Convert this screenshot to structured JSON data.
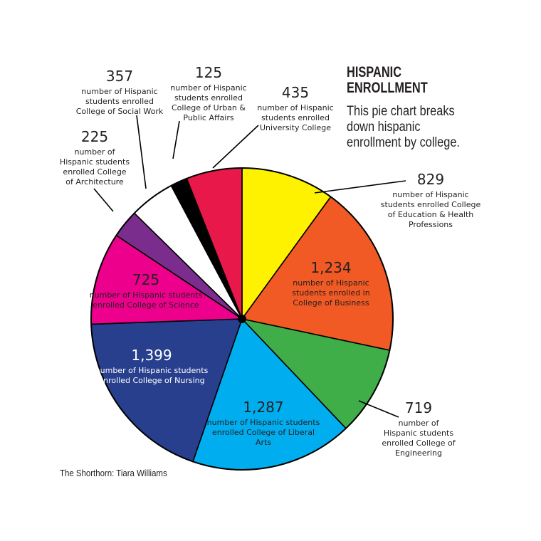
{
  "title": "HISPANIC ENROLLMENT",
  "title_lines": [
    "HISPANIC",
    "ENROLLMENT"
  ],
  "subtitle_lines": [
    "This pie chart breaks",
    "down hispanic",
    "enrollment by college."
  ],
  "credit": "The Shorthorn: Tiara Williams",
  "labels": {
    "social_work": {
      "value": "357",
      "lines": [
        "number of Hispanic",
        "students enrolled",
        "College of Social Work"
      ]
    },
    "urban": {
      "value": "125",
      "lines": [
        "number of Hispanic",
        "students enrolled",
        "College of Urban &",
        "Public Affairs"
      ]
    },
    "university": {
      "value": "435",
      "lines": [
        "number of Hispanic",
        "students enrolled",
        "University College"
      ]
    },
    "architecture": {
      "value": "225",
      "lines": [
        "number of",
        "Hispanic students",
        "enrolled College",
        "of Architecture"
      ]
    },
    "education": {
      "value": "829",
      "lines": [
        "number of Hispanic",
        "students enrolled College",
        "of Education & Health",
        "Professions"
      ]
    },
    "business": {
      "value": "1,234",
      "lines": [
        "number of Hispanic",
        "students enrolled in",
        "College of Business"
      ]
    },
    "science": {
      "value": "725",
      "lines": [
        "number of Hispanic students",
        "enrolled College of Science"
      ]
    },
    "nursing": {
      "value": "1,399",
      "lines": [
        "number of Hispanic students",
        "enrolled College of Nursing"
      ]
    },
    "liberal_arts": {
      "value": "1,287",
      "lines": [
        "number of Hispanic students",
        "enrolled College of Liberal",
        "Arts"
      ]
    },
    "engineering": {
      "value": "719",
      "lines": [
        "number of",
        "Hispanic students",
        "enrolled College of",
        "Engineering"
      ]
    }
  },
  "chart_data": {
    "type": "pie",
    "title": "HISPANIC ENROLLMENT",
    "subtitle": "This pie chart breaks down hispanic enrollment by college.",
    "categories": [
      "University College",
      "College of Education & Health Professions",
      "College of Engineering",
      "College of Liberal Arts",
      "College of Nursing",
      "College of Science",
      "College of Architecture",
      "College of Social Work",
      "College of Urban & Public Affairs",
      "College of Business"
    ],
    "slices": [
      {
        "name": "College of Education & Health Professions",
        "value": 829,
        "color": "#fff200",
        "start_deg": 0,
        "end_deg": 36
      },
      {
        "name": "College of Business",
        "value": 1234,
        "color": "#f15a24",
        "start_deg": 36,
        "end_deg": 102
      },
      {
        "name": "College of Engineering",
        "value": 719,
        "color": "#3fae49",
        "start_deg": 102,
        "end_deg": 136.5
      },
      {
        "name": "College of Liberal Arts",
        "value": 1287,
        "color": "#00aeef",
        "start_deg": 136.5,
        "end_deg": 199
      },
      {
        "name": "College of Nursing",
        "value": 1399,
        "color": "#283f8e",
        "start_deg": 199,
        "end_deg": 268
      },
      {
        "name": "College of Science",
        "value": 725,
        "color": "#ec008c",
        "start_deg": 268,
        "end_deg": 303.6
      },
      {
        "name": "College of Architecture",
        "value": 225,
        "color": "#7b2d8e",
        "start_deg": 303.6,
        "end_deg": 314.5
      },
      {
        "name": "College of Social Work",
        "value": 357,
        "color": "#ffffff",
        "start_deg": 314.5,
        "end_deg": 332
      },
      {
        "name": "College of Urban & Public Affairs",
        "value": 125,
        "color": "#000000",
        "start_deg": 332,
        "end_deg": 338.5
      },
      {
        "name": "University College",
        "value": 435,
        "color": "#e8194a",
        "start_deg": 338.5,
        "end_deg": 360
      }
    ],
    "values": [
      829,
      1234,
      719,
      1287,
      1399,
      725,
      225,
      357,
      125,
      435
    ],
    "legend": "none (callout labels)",
    "source": "The Shorthorn: Tiara Williams"
  }
}
